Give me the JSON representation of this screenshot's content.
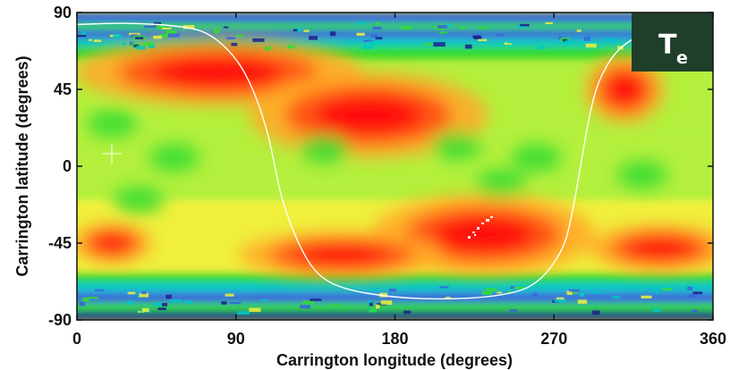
{
  "chart_data": {
    "type": "heatmap",
    "title": "",
    "xlabel": "Carrington longitude (degrees)",
    "ylabel": "Carrington latitude (degrees)",
    "xlim": [
      0,
      360
    ],
    "ylim": [
      -90,
      90
    ],
    "x_ticks": [
      "0",
      "90",
      "180",
      "270",
      "360"
    ],
    "y_ticks": [
      "90",
      "45",
      "0",
      "-45",
      "-90"
    ],
    "x_tick_values": [
      0,
      90,
      180,
      270,
      360
    ],
    "y_tick_values": [
      90,
      45,
      0,
      -45,
      -90
    ],
    "quantity": {
      "main": "T",
      "sub": "e"
    },
    "colormap": [
      "#1e1e8c",
      "#3c64dc",
      "#00c8c8",
      "#32dc32",
      "#b4f03c",
      "#f0f03c",
      "#ffaa28",
      "#ff5014",
      "#ff0a0a"
    ],
    "colors": {
      "frame": "#111111",
      "neutral_line": "#ffffff",
      "badge": "#1f3f2a"
    },
    "neutral_line": [
      [
        0,
        83
      ],
      [
        30,
        84
      ],
      [
        60,
        82
      ],
      [
        75,
        78
      ],
      [
        90,
        64
      ],
      [
        100,
        45
      ],
      [
        108,
        20
      ],
      [
        112,
        0
      ],
      [
        116,
        -20
      ],
      [
        125,
        -45
      ],
      [
        135,
        -63
      ],
      [
        150,
        -72
      ],
      [
        180,
        -77
      ],
      [
        210,
        -78
      ],
      [
        240,
        -76
      ],
      [
        260,
        -70
      ],
      [
        275,
        -50
      ],
      [
        280,
        -30
      ],
      [
        285,
        0
      ],
      [
        290,
        30
      ],
      [
        295,
        50
      ],
      [
        305,
        68
      ],
      [
        320,
        78
      ],
      [
        340,
        82
      ],
      [
        360,
        83
      ]
    ],
    "hot_regions": [
      {
        "lon": 80,
        "lat": 55
      },
      {
        "lon": 165,
        "lat": 30
      },
      {
        "lon": 310,
        "lat": 45
      },
      {
        "lon": 230,
        "lat": -40
      },
      {
        "lon": 150,
        "lat": -52
      },
      {
        "lon": 330,
        "lat": -48
      },
      {
        "lon": 20,
        "lat": -45
      }
    ],
    "grid": false
  }
}
